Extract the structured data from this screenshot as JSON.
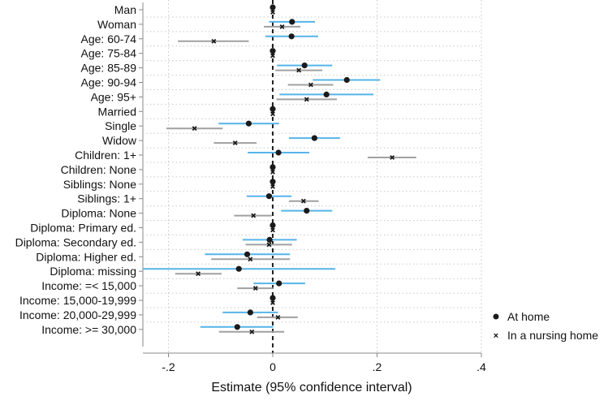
{
  "chart_data": {
    "type": "scatter",
    "subtype": "coefficient-plot",
    "xlabel": "Estimate (95% confidence interval)",
    "xlim": [
      -0.25,
      0.4
    ],
    "xticks": [
      -0.2,
      0,
      0.2,
      0.4
    ],
    "xtick_labels": [
      "-.2",
      "0",
      ".2",
      ".4"
    ],
    "grid": true,
    "legend_position": "right-bottom",
    "colors": {
      "at_home_ci": "#56b4e9",
      "nursing_ci": "#a0a0a0",
      "marker": "#1a1a1a"
    },
    "categories": [
      "Man",
      "Woman",
      "Age: 60-74",
      "Age: 75-84",
      "Age: 85-89",
      "Age: 90-94",
      "Age: 95+",
      "Married",
      "Single",
      "Widow",
      "Children: 1+",
      "Children: None",
      "Siblings: None",
      "Siblings: 1+",
      "Diploma: None",
      "Diploma: Primary ed.",
      "Diploma: Secondary ed.",
      "Diploma: Higher ed.",
      "Diploma: missing",
      "Income: =< 15,000",
      "Income: 15,000-19,999",
      "Income: 20,000-29,999",
      "Income: >= 30,000"
    ],
    "series": [
      {
        "name": "At home",
        "marker": "dot",
        "values": [
          0,
          0.037,
          0.036,
          0,
          0.061,
          0.142,
          0.103,
          0,
          -0.046,
          0.08,
          0.011,
          0,
          0,
          -0.007,
          0.065,
          0,
          -0.006,
          -0.049,
          -0.065,
          0.012,
          0,
          -0.043,
          -0.068
        ],
        "ci_low": [
          null,
          -0.007,
          -0.014,
          null,
          0.008,
          0.077,
          0.013,
          null,
          -0.104,
          0.031,
          -0.048,
          null,
          null,
          -0.05,
          0.016,
          null,
          -0.058,
          -0.13,
          -0.249,
          -0.037,
          null,
          -0.096,
          -0.139
        ],
        "ci_high": [
          null,
          0.081,
          0.087,
          null,
          0.114,
          0.206,
          0.193,
          null,
          0.012,
          0.129,
          0.07,
          null,
          null,
          0.036,
          0.114,
          null,
          0.046,
          0.033,
          0.12,
          0.062,
          null,
          0.01,
          0.001
        ]
      },
      {
        "name": "In a nursing home",
        "marker": "x",
        "values": [
          0,
          0.018,
          -0.113,
          0,
          0.05,
          0.073,
          0.065,
          0,
          -0.15,
          -0.072,
          0.229,
          0,
          0,
          0.059,
          -0.037,
          0,
          -0.007,
          -0.043,
          -0.143,
          -0.033,
          0,
          0.01,
          -0.04
        ],
        "ci_low": [
          null,
          -0.017,
          -0.182,
          null,
          0.005,
          0.029,
          0.007,
          null,
          -0.204,
          -0.113,
          0.182,
          null,
          null,
          0.031,
          -0.074,
          null,
          -0.052,
          -0.118,
          -0.187,
          -0.068,
          null,
          -0.03,
          -0.103
        ],
        "ci_high": [
          null,
          0.053,
          -0.046,
          null,
          0.095,
          0.116,
          0.123,
          null,
          -0.096,
          -0.031,
          0.275,
          null,
          null,
          0.088,
          -0.002,
          null,
          0.037,
          0.033,
          -0.098,
          0.001,
          null,
          0.048,
          0.022
        ]
      }
    ]
  }
}
